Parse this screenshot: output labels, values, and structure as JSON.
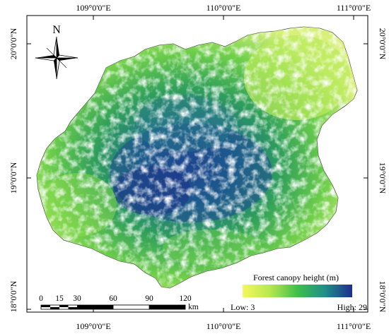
{
  "map": {
    "top_labels": [
      "109°0'0\"E",
      "110°0'0\"E",
      "111°0'0\"E"
    ],
    "bottom_labels": [
      "109°0'0\"E",
      "110°0'0\"E",
      "111°0'0\"E"
    ],
    "left_labels": [
      "20°0'0\"N",
      "19°0'0\"N",
      "18°0'0\"N"
    ],
    "right_labels": [
      "20°0'0\"N",
      "19°0'0\"N",
      "18°0'0\"N"
    ]
  },
  "north_arrow": {
    "label": "N"
  },
  "legend": {
    "title": "Forest canopy height (m)",
    "low_label": "Low: 3",
    "high_label": "High: 29",
    "low_value": 3,
    "high_value": 29,
    "color_low": "#f2f75a",
    "color_mid": "#3fbf4a",
    "color_high": "#1f3f8f"
  },
  "scale_bar": {
    "ticks": [
      "0",
      "15",
      "30",
      "60",
      "90",
      "120"
    ],
    "unit": "km"
  }
}
